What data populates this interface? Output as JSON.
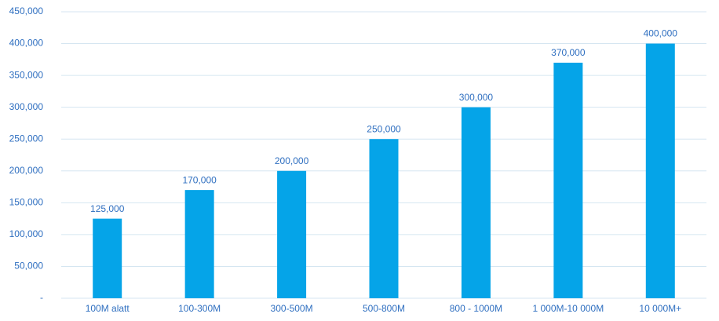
{
  "chart_data": {
    "type": "bar",
    "categories": [
      "100M alatt",
      "100-300M",
      "300-500M",
      "500-800M",
      "800 - 1000M",
      "1 000M-10 000M",
      "10 000M+"
    ],
    "values": [
      125000,
      170000,
      200000,
      250000,
      300000,
      370000,
      400000
    ],
    "value_labels": [
      "125,000",
      "170,000",
      "200,000",
      "250,000",
      "300,000",
      "370,000",
      "400,000"
    ],
    "color": "#05a4e8",
    "ylim": [
      0,
      450000
    ],
    "yticks": [
      {
        "value": 0,
        "label": "-"
      },
      {
        "value": 50000,
        "label": "50,000"
      },
      {
        "value": 100000,
        "label": "100,000"
      },
      {
        "value": 150000,
        "label": "150,000"
      },
      {
        "value": 200000,
        "label": "200,000"
      },
      {
        "value": 250000,
        "label": "250,000"
      },
      {
        "value": 300000,
        "label": "300,000"
      },
      {
        "value": 350000,
        "label": "350,000"
      },
      {
        "value": 400000,
        "label": "400,000"
      },
      {
        "value": 450000,
        "label": "450,000"
      }
    ],
    "grid": true
  }
}
